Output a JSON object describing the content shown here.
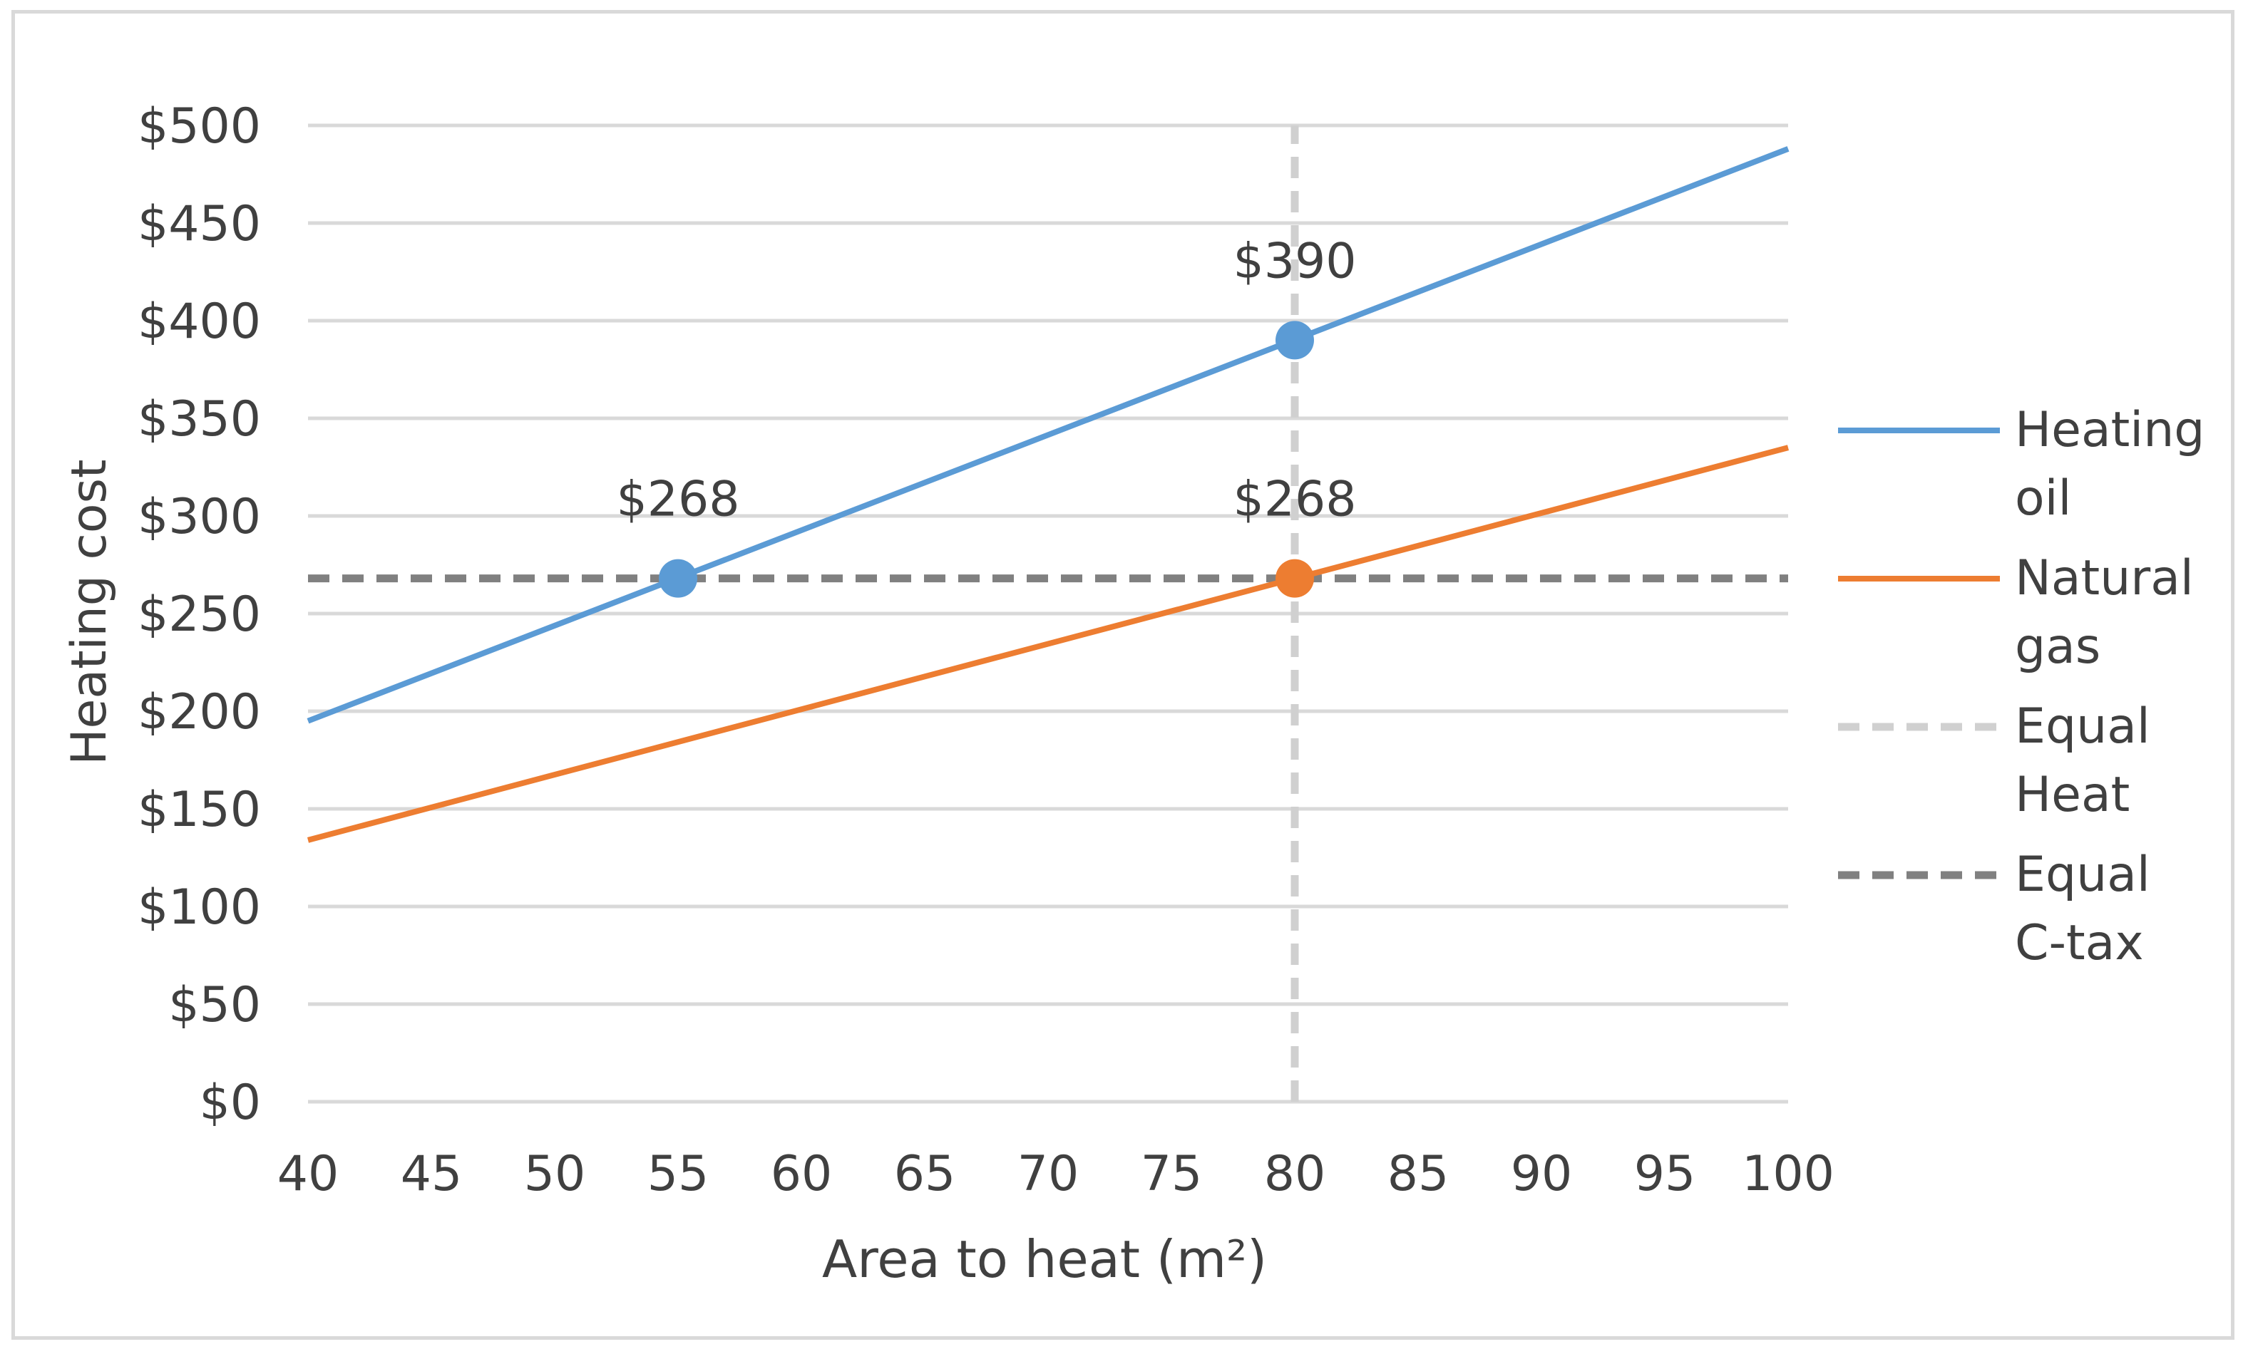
{
  "chart_data": {
    "type": "line",
    "title": "",
    "xlabel": "Area to heat (m²)",
    "ylabel": "Heating cost",
    "xlim": [
      40,
      100
    ],
    "ylim": [
      0,
      500
    ],
    "x_ticks": [
      40,
      45,
      50,
      55,
      60,
      65,
      70,
      75,
      80,
      85,
      90,
      95,
      100
    ],
    "y_ticks": [
      0,
      50,
      100,
      150,
      200,
      250,
      300,
      350,
      400,
      450,
      500
    ],
    "y_tick_labels": [
      "$0",
      "$50",
      "$100",
      "$150",
      "$200",
      "$250",
      "$300",
      "$350",
      "$400",
      "$450",
      "$500"
    ],
    "grid": "horizontal",
    "legend_position": "right",
    "series": [
      {
        "name": "Heating oil",
        "legend_lines": [
          "Heating",
          "oil"
        ],
        "color": "#5b9bd5",
        "dash": "solid",
        "x": [
          40,
          100
        ],
        "y": [
          195,
          488
        ]
      },
      {
        "name": "Natural gas",
        "legend_lines": [
          "Natural",
          "gas"
        ],
        "color": "#ed7d31",
        "dash": "solid",
        "x": [
          40,
          100
        ],
        "y": [
          134,
          335
        ]
      },
      {
        "name": "Equal Heat",
        "legend_lines": [
          "Equal",
          "Heat"
        ],
        "color": "#d0d0d0",
        "dash": "dashed",
        "x": [
          80,
          80
        ],
        "y": [
          0,
          500
        ]
      },
      {
        "name": "Equal C-tax",
        "legend_lines": [
          "Equal",
          "C-tax"
        ],
        "color": "#808080",
        "dash": "dashed",
        "x": [
          40,
          100
        ],
        "y": [
          268,
          268
        ]
      }
    ],
    "markers": [
      {
        "series": "Heating oil",
        "x": 55,
        "y": 268,
        "label": "$268",
        "color": "#5b9bd5"
      },
      {
        "series": "Heating oil",
        "x": 80,
        "y": 390,
        "label": "$390",
        "color": "#5b9bd5"
      },
      {
        "series": "Natural gas",
        "x": 80,
        "y": 268,
        "label": "$268",
        "color": "#ed7d31"
      }
    ]
  }
}
